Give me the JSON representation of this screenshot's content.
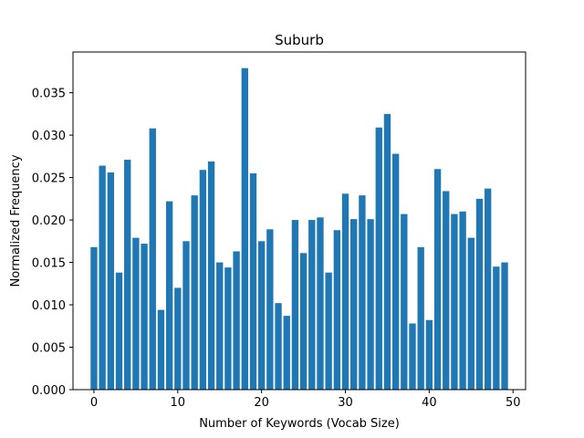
{
  "chart_data": {
    "type": "bar",
    "title": "Suburb",
    "xlabel": "Number of Keywords (Vocab Size)",
    "ylabel": "Normalized Frequency",
    "bar_color": "#1f77b4",
    "x": [
      0,
      1,
      2,
      3,
      4,
      5,
      6,
      7,
      8,
      9,
      10,
      11,
      12,
      13,
      14,
      15,
      16,
      17,
      18,
      19,
      20,
      21,
      22,
      23,
      24,
      25,
      26,
      27,
      28,
      29,
      30,
      31,
      32,
      33,
      34,
      35,
      36,
      37,
      38,
      39,
      40,
      41,
      42,
      43,
      44,
      45,
      46,
      47,
      48,
      49
    ],
    "values": [
      0.0168,
      0.0264,
      0.0256,
      0.0138,
      0.0271,
      0.0179,
      0.0172,
      0.0308,
      0.0094,
      0.0222,
      0.012,
      0.0175,
      0.0229,
      0.0259,
      0.0269,
      0.015,
      0.0144,
      0.0163,
      0.0379,
      0.0255,
      0.0175,
      0.0189,
      0.0102,
      0.0087,
      0.02,
      0.0161,
      0.02,
      0.0203,
      0.0138,
      0.0188,
      0.0231,
      0.0201,
      0.0229,
      0.0201,
      0.0309,
      0.0325,
      0.0278,
      0.0207,
      0.0078,
      0.0168,
      0.0082,
      0.026,
      0.0234,
      0.0207,
      0.021,
      0.0179,
      0.0225,
      0.0237,
      0.0145,
      0.015
    ],
    "xlim": [
      -2.5,
      51.5
    ],
    "ylim": [
      0,
      0.0398
    ],
    "xticks": [
      0,
      10,
      20,
      30,
      40,
      50
    ],
    "xtick_labels": [
      "0",
      "10",
      "20",
      "30",
      "40",
      "50"
    ],
    "yticks": [
      0,
      0.005,
      0.01,
      0.015,
      0.02,
      0.025,
      0.03,
      0.035
    ],
    "ytick_labels": [
      "0.000",
      "0.005",
      "0.010",
      "0.015",
      "0.020",
      "0.025",
      "0.030",
      "0.035"
    ],
    "grid": false
  }
}
